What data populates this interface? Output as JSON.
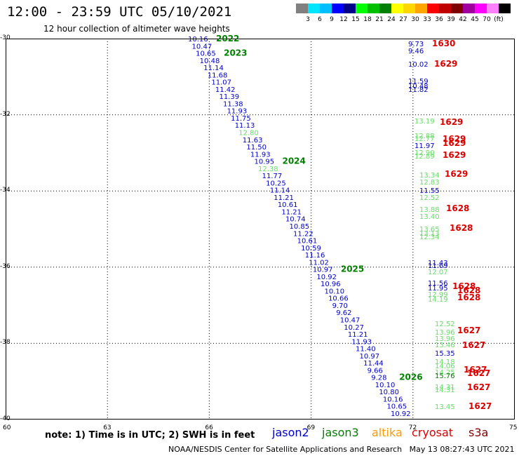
{
  "title": "12:00 - 23:59 UTC 05/10/2021",
  "subtitle": "12 hour collection of altimeter wave heights",
  "legend": {
    "colors": [
      "#808080",
      "#00e6ff",
      "#00bfff",
      "#0000ff",
      "#00008b",
      "#00ff00",
      "#00c000",
      "#008000",
      "#ffff00",
      "#ffd700",
      "#ffa500",
      "#ff0000",
      "#c00000",
      "#800000",
      "#a000a0",
      "#ff00ff",
      "#ff80ff",
      "#000000"
    ],
    "labels": [
      "3",
      "6",
      "9",
      "12",
      "15",
      "18",
      "21",
      "24",
      "27",
      "30",
      "33",
      "36",
      "39",
      "42",
      "45",
      "70",
      "(ft)"
    ]
  },
  "axes": {
    "y_ticks": [
      "-30",
      "-32",
      "-34",
      "-36",
      "-38",
      "-40"
    ],
    "x_ticks": [
      "60",
      "63",
      "66",
      "69",
      "72",
      "75"
    ]
  },
  "notes": "note: 1) Time is in UTC; 2) SWH is in feet",
  "satellites": [
    {
      "name": "jason2",
      "color": "#0000cc"
    },
    {
      "name": "jason3",
      "color": "#008000"
    },
    {
      "name": "altika",
      "color": "#ff9900"
    },
    {
      "name": "cryosat",
      "color": "#dd0000"
    },
    {
      "name": "s3a",
      "color": "#800000"
    }
  ],
  "credit": "NOAA/NESDIS Center for Satellite Applications and Research   May 13 08:27:43 UTC 2021",
  "map_data": {
    "lat_range": [
      -30,
      -40
    ],
    "lon_range": [
      60,
      75
    ],
    "track1_labels": [
      "10.16",
      "10.47",
      "10.65",
      "10.48",
      "11.14",
      "11.68",
      "11.07",
      "11.42",
      "11.39",
      "11.38",
      "11.93",
      "11.75",
      "11.13",
      "12.80",
      "11.63",
      "11.50",
      "11.93",
      "10.95",
      "12.38",
      "11.77",
      "10.25",
      "11.14",
      "11.21",
      "10.61",
      "11.21",
      "10.74",
      "10.85",
      "11.22",
      "10.61",
      "10.59",
      "11.16",
      "11.02",
      "10.97",
      "10.92",
      "10.96",
      "10.10",
      "10.66",
      "9.70",
      "9.62",
      "10.47",
      "10.27",
      "11.21",
      "11.93",
      "11.40",
      "10.97",
      "11.44",
      "9.66",
      "9.28",
      "10.10",
      "10.80",
      "10.16",
      "10.65",
      "10.92"
    ],
    "track1_passes": [
      "2022",
      "2023",
      "2024",
      "2025",
      "2026"
    ],
    "track2_labels": [
      {
        "v": "9.73",
        "c": "#0000cc"
      },
      {
        "v": "9.46",
        "c": "#0000cc"
      },
      {
        "v": "10.02",
        "c": "#0000cc"
      },
      {
        "v": "11.59",
        "c": "#0000cc"
      },
      {
        "v": "10.48",
        "c": "#0000cc"
      },
      {
        "v": "11.82",
        "c": "#0000cc"
      },
      {
        "v": "13.19",
        "c": "#66dd66"
      },
      {
        "v": "12.88",
        "c": "#66dd66"
      },
      {
        "v": "12.77",
        "c": "#66dd66"
      },
      {
        "v": "11.97",
        "c": "#0000cc"
      },
      {
        "v": "12.90",
        "c": "#66dd66"
      },
      {
        "v": "12.89",
        "c": "#66dd66"
      },
      {
        "v": "13.34",
        "c": "#66dd66"
      },
      {
        "v": "12.83",
        "c": "#66dd66"
      },
      {
        "v": "11.55",
        "c": "#0000cc"
      },
      {
        "v": "12.52",
        "c": "#66dd66"
      },
      {
        "v": "13.88",
        "c": "#66dd66"
      },
      {
        "v": "13.40",
        "c": "#66dd66"
      },
      {
        "v": "13.65",
        "c": "#66dd66"
      },
      {
        "v": "13.13",
        "c": "#66dd66"
      },
      {
        "v": "12.34",
        "c": "#66dd66"
      },
      {
        "v": "11.43",
        "c": "#0000cc"
      },
      {
        "v": "11.69",
        "c": "#0000cc"
      },
      {
        "v": "12.07",
        "c": "#66dd66"
      },
      {
        "v": "11.56",
        "c": "#0000cc"
      },
      {
        "v": "11.95",
        "c": "#0000cc"
      },
      {
        "v": "12.99",
        "c": "#66dd66"
      },
      {
        "v": "14.19",
        "c": "#66dd66"
      },
      {
        "v": "12.52",
        "c": "#66dd66"
      },
      {
        "v": "13.96",
        "c": "#66dd66"
      },
      {
        "v": "13.96",
        "c": "#66dd66"
      },
      {
        "v": "13.46",
        "c": "#66dd66"
      },
      {
        "v": "15.35",
        "c": "#0000cc"
      },
      {
        "v": "14.18",
        "c": "#66dd66"
      },
      {
        "v": "14.06",
        "c": "#66dd66"
      },
      {
        "v": "14.25",
        "c": "#66dd66"
      },
      {
        "v": "15.76",
        "c": "#008000"
      },
      {
        "v": "14.31",
        "c": "#66dd66"
      },
      {
        "v": "14.31",
        "c": "#66dd66"
      },
      {
        "v": "13.45",
        "c": "#66dd66"
      }
    ],
    "track2_passes": [
      "1630",
      "1629",
      "1629",
      "1629",
      "1629",
      "1629",
      "1629",
      "1628",
      "1628",
      "1628",
      "1628",
      "1628",
      "1627",
      "1627",
      "1627",
      "1627",
      "1627",
      "1627"
    ]
  }
}
